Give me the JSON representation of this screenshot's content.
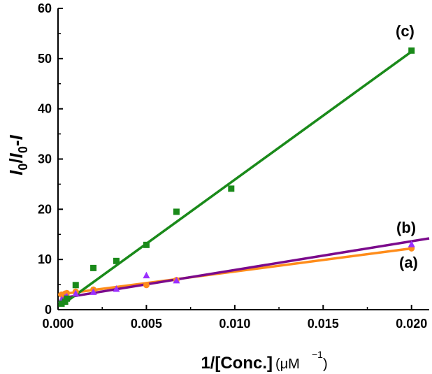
{
  "chart_data": {
    "type": "scatter",
    "xlabel": "1/[Conc.]",
    "xlabel_unit": "(μM",
    "xlabel_unit_exp": "−1",
    "xlabel_unit_close": ")",
    "ylabel_parts": [
      "I",
      "0",
      "/",
      "I",
      "0",
      "-",
      "I"
    ],
    "xlim": [
      0,
      0.021
    ],
    "ylim": [
      0,
      60
    ],
    "xticks": [
      0.0,
      0.005,
      0.01,
      0.015,
      0.02
    ],
    "xtick_labels": [
      "0.000",
      "0.005",
      "0.010",
      "0.015",
      "0.020"
    ],
    "yticks": [
      0,
      10,
      20,
      30,
      40,
      50,
      60
    ],
    "ytick_labels": [
      "0",
      "10",
      "20",
      "30",
      "40",
      "50",
      "60"
    ],
    "grid": false,
    "series": [
      {
        "label": "(a)",
        "marker": "circle",
        "color": "#FF8C1A",
        "points": [
          [
            0.0002,
            3.0
          ],
          [
            0.0004,
            3.2
          ],
          [
            0.0005,
            3.3
          ],
          [
            0.001,
            3.6
          ],
          [
            0.002,
            4.0
          ],
          [
            0.005,
            4.9
          ],
          [
            0.0067,
            5.9
          ],
          [
            0.02,
            12.2
          ]
        ],
        "fit": [
          [
            0.0,
            3.0
          ],
          [
            0.02,
            12.2
          ]
        ]
      },
      {
        "label": "(b)",
        "marker": "triangle",
        "color": "#9B30FF",
        "line_color": "#7B0A8C",
        "points": [
          [
            0.0002,
            2.0
          ],
          [
            0.0004,
            2.4
          ],
          [
            0.0005,
            2.6
          ],
          [
            0.001,
            3.2
          ],
          [
            0.002,
            3.5
          ],
          [
            0.0033,
            4.1
          ],
          [
            0.005,
            6.8
          ],
          [
            0.0067,
            5.8
          ],
          [
            0.02,
            13.0
          ]
        ],
        "fit": [
          [
            0.0002,
            2.3
          ],
          [
            0.021,
            14.2
          ]
        ]
      },
      {
        "label": "(c)",
        "marker": "square",
        "color": "#1A8A1A",
        "points": [
          [
            0.0002,
            1.2
          ],
          [
            0.0004,
            1.6
          ],
          [
            0.0005,
            2.2
          ],
          [
            0.001,
            4.9
          ],
          [
            0.002,
            8.3
          ],
          [
            0.0033,
            9.7
          ],
          [
            0.005,
            12.9
          ],
          [
            0.0067,
            19.5
          ],
          [
            0.0098,
            24.1
          ],
          [
            0.02,
            51.6
          ]
        ],
        "fit": [
          [
            0.0002,
            0.9
          ],
          [
            0.02,
            51.4
          ]
        ]
      }
    ]
  }
}
